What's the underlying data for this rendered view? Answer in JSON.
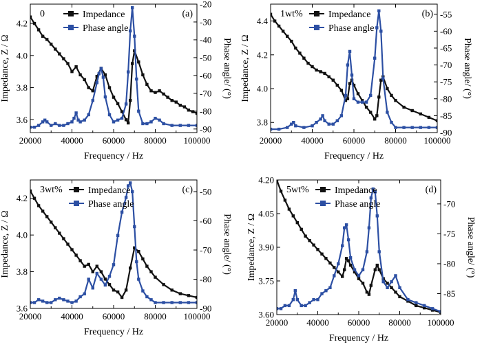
{
  "colors": {
    "impedance": "#111111",
    "phase": "#2c4fa3",
    "axis": "#000000"
  },
  "chart_data": [
    {
      "type": "line",
      "panel_label": "(a)",
      "content_label": "0",
      "xlabel": "Frequency / Hz",
      "ylabel": "Impedance, Z / Ω",
      "y2label": "Phase angle/ (°)",
      "xlim": [
        20000,
        100000
      ],
      "ylim": [
        3.52,
        4.32
      ],
      "y2lim": [
        -92,
        -20
      ],
      "xticks": [
        20000,
        40000,
        60000,
        80000,
        100000
      ],
      "yticks": [
        3.6,
        3.8,
        4.0,
        4.2
      ],
      "y2ticks": [
        -90,
        -80,
        -70,
        -60,
        -50,
        -40,
        -30,
        -20
      ],
      "legend": [
        "Impedance",
        "Phase angle"
      ],
      "legend_position": "top-left",
      "grid": false,
      "series": [
        {
          "name": "Impedance",
          "axis": "left",
          "x": [
            20000,
            22000,
            24000,
            26000,
            28000,
            30000,
            32000,
            34000,
            36000,
            38000,
            40000,
            42000,
            44000,
            46000,
            48000,
            50000,
            52000,
            54000,
            56000,
            58000,
            60000,
            62000,
            64000,
            66000,
            67000,
            68000,
            69000,
            70000,
            72000,
            74000,
            76000,
            78000,
            80000,
            82000,
            84000,
            86000,
            88000,
            90000,
            92000,
            94000,
            96000,
            98000,
            100000
          ],
          "values": [
            4.24,
            4.2,
            4.16,
            4.12,
            4.1,
            4.07,
            4.04,
            4.01,
            3.98,
            3.95,
            3.9,
            3.93,
            3.88,
            3.85,
            3.8,
            3.78,
            3.87,
            3.92,
            3.88,
            3.8,
            3.74,
            3.7,
            3.65,
            3.6,
            3.58,
            3.72,
            3.95,
            4.03,
            3.96,
            3.88,
            3.82,
            3.78,
            3.77,
            3.78,
            3.76,
            3.74,
            3.72,
            3.71,
            3.69,
            3.68,
            3.66,
            3.65,
            3.64
          ]
        },
        {
          "name": "Phase angle",
          "axis": "right",
          "x": [
            20000,
            22000,
            24000,
            26000,
            27000,
            28000,
            30000,
            32000,
            34000,
            36000,
            38000,
            40000,
            41000,
            42000,
            43000,
            44000,
            46000,
            48000,
            50000,
            52000,
            53000,
            54000,
            55000,
            56000,
            58000,
            60000,
            62000,
            64000,
            66000,
            67000,
            68000,
            69000,
            70000,
            71000,
            72000,
            74000,
            76000,
            78000,
            80000,
            82000,
            84000,
            88000,
            92000,
            96000,
            100000
          ],
          "values": [
            -89,
            -89,
            -88,
            -86,
            -85,
            -86,
            -88,
            -87,
            -88,
            -88,
            -87,
            -86,
            -84,
            -81,
            -85,
            -86,
            -85,
            -82,
            -74,
            -64,
            -59,
            -56,
            -61,
            -72,
            -82,
            -86,
            -85,
            -84,
            -76,
            -58,
            -35,
            -22,
            -38,
            -62,
            -80,
            -87,
            -87,
            -86,
            -84,
            -85,
            -87,
            -88,
            -88,
            -88,
            -88
          ]
        }
      ]
    },
    {
      "type": "line",
      "panel_label": "(b)",
      "content_label": "1wt%",
      "xlabel": "Frequency / Hz",
      "ylabel": "Impedance, Z / Ω",
      "y2label": "Phase angle/ (°)",
      "xlim": [
        20000,
        100000
      ],
      "ylim": [
        3.74,
        4.5
      ],
      "y2lim": [
        -90,
        -52
      ],
      "xticks": [
        20000,
        40000,
        60000,
        80000,
        100000
      ],
      "yticks": [
        3.8,
        4.0,
        4.2,
        4.4
      ],
      "y2ticks": [
        -90,
        -85,
        -80,
        -75,
        -70,
        -65,
        -60,
        -55
      ],
      "legend": [
        "Impedance",
        "Phase angle"
      ],
      "legend_position": "top-left",
      "grid": false,
      "series": [
        {
          "name": "Impedance",
          "axis": "left",
          "x": [
            20000,
            22000,
            24000,
            26000,
            28000,
            30000,
            32000,
            34000,
            36000,
            38000,
            40000,
            42000,
            44000,
            46000,
            48000,
            50000,
            52000,
            54000,
            56000,
            57000,
            58000,
            59000,
            60000,
            62000,
            64000,
            66000,
            68000,
            70000,
            71000,
            72000,
            73000,
            74000,
            76000,
            78000,
            80000,
            84000,
            88000,
            92000,
            96000,
            100000
          ],
          "values": [
            4.44,
            4.4,
            4.37,
            4.34,
            4.31,
            4.28,
            4.24,
            4.21,
            4.18,
            4.15,
            4.13,
            4.11,
            4.1,
            4.09,
            4.07,
            4.05,
            4.02,
            3.99,
            3.93,
            3.94,
            4.03,
            4.05,
            4.02,
            3.97,
            3.93,
            3.89,
            3.86,
            3.82,
            3.84,
            3.95,
            4.05,
            4.07,
            4.0,
            3.96,
            3.93,
            3.89,
            3.87,
            3.85,
            3.83,
            3.81
          ]
        },
        {
          "name": "Phase angle",
          "axis": "right",
          "x": [
            20000,
            24000,
            28000,
            30000,
            31000,
            32000,
            36000,
            40000,
            42000,
            44000,
            45000,
            46000,
            48000,
            50000,
            52000,
            54000,
            56000,
            57000,
            58000,
            59000,
            60000,
            62000,
            64000,
            66000,
            68000,
            70000,
            71000,
            72000,
            73000,
            74000,
            76000,
            78000,
            80000,
            84000,
            88000,
            92000,
            96000,
            100000
          ],
          "values": [
            -89,
            -89,
            -88.5,
            -87.5,
            -87,
            -88,
            -88.5,
            -88,
            -87,
            -86,
            -85,
            -86.5,
            -87.5,
            -87.5,
            -86.5,
            -85,
            -79,
            -70,
            -66,
            -73,
            -80,
            -81,
            -81,
            -81,
            -79,
            -68,
            -59,
            -54,
            -60,
            -74,
            -84,
            -87,
            -88.5,
            -88.5,
            -88.5,
            -88.5,
            -88.5,
            -88.5
          ]
        }
      ]
    },
    {
      "type": "line",
      "panel_label": "(c)",
      "content_label": "3wt%",
      "xlabel": "Frequency / Hz",
      "ylabel": "Impedance, Z / Ω",
      "y2label": "Phase angle/ (°)",
      "xlim": [
        20000,
        100000
      ],
      "ylim": [
        3.6,
        4.3
      ],
      "y2lim": [
        -90,
        -46
      ],
      "xticks": [
        20000,
        40000,
        60000,
        80000,
        100000
      ],
      "yticks": [
        3.6,
        3.8,
        4.0,
        4.2
      ],
      "y2ticks": [
        -90,
        -80,
        -70,
        -60,
        -50
      ],
      "legend": [
        "Impedance",
        "Phase angle"
      ],
      "legend_position": "top-left",
      "grid": false,
      "series": [
        {
          "name": "Impedance",
          "axis": "left",
          "x": [
            20000,
            22000,
            24000,
            26000,
            28000,
            30000,
            32000,
            34000,
            36000,
            38000,
            40000,
            42000,
            44000,
            46000,
            48000,
            50000,
            52000,
            54000,
            56000,
            58000,
            60000,
            62000,
            64000,
            66000,
            68000,
            70000,
            72000,
            74000,
            76000,
            78000,
            80000,
            84000,
            88000,
            92000,
            96000,
            100000
          ],
          "values": [
            4.24,
            4.2,
            4.16,
            4.13,
            4.1,
            4.07,
            4.04,
            4.01,
            3.98,
            3.95,
            3.92,
            3.89,
            3.86,
            3.83,
            3.84,
            3.8,
            3.83,
            3.8,
            3.76,
            3.73,
            3.7,
            3.69,
            3.66,
            3.7,
            3.82,
            3.93,
            3.91,
            3.87,
            3.83,
            3.8,
            3.77,
            3.73,
            3.7,
            3.68,
            3.67,
            3.66
          ]
        },
        {
          "name": "Phase angle",
          "axis": "right",
          "x": [
            20000,
            22000,
            24000,
            26000,
            28000,
            30000,
            32000,
            34000,
            36000,
            38000,
            40000,
            42000,
            44000,
            46000,
            48000,
            50000,
            52000,
            54000,
            56000,
            58000,
            60000,
            62000,
            64000,
            66000,
            67000,
            68000,
            69000,
            70000,
            71000,
            72000,
            74000,
            76000,
            78000,
            80000,
            84000,
            88000,
            92000,
            96000,
            100000
          ],
          "values": [
            -88,
            -88,
            -87,
            -87.5,
            -88,
            -88,
            -87,
            -86.5,
            -87,
            -87.5,
            -88,
            -87.5,
            -86,
            -85,
            -80,
            -83,
            -78,
            -80,
            -82,
            -79,
            -75,
            -65,
            -57,
            -52,
            -48,
            -47,
            -50,
            -62,
            -74,
            -80,
            -84,
            -86,
            -87,
            -88,
            -88,
            -88,
            -88,
            -88,
            -88
          ]
        }
      ]
    },
    {
      "type": "line",
      "panel_label": "(d)",
      "content_label": "5wt%",
      "xlabel": "Frequency / Hz",
      "ylabel": "Impedance, Z / Ω",
      "y2label": "Phase angle/ (°)",
      "xlim": [
        20000,
        100000
      ],
      "ylim": [
        3.6,
        4.2
      ],
      "y2lim": [
        -88.5,
        -66
      ],
      "xticks": [
        20000,
        40000,
        60000,
        80000,
        100000
      ],
      "yticks": [
        3.6,
        3.75,
        3.9,
        4.05,
        4.2
      ],
      "y2ticks": [
        -85,
        -80,
        -75,
        -70
      ],
      "legend": [
        "Impedance",
        "Phase angle"
      ],
      "legend_position": "top-left",
      "grid": false,
      "series": [
        {
          "name": "Impedance",
          "axis": "left",
          "x": [
            20000,
            22000,
            24000,
            26000,
            28000,
            30000,
            32000,
            34000,
            36000,
            38000,
            40000,
            42000,
            44000,
            46000,
            48000,
            50000,
            52000,
            53000,
            54000,
            55000,
            56000,
            58000,
            60000,
            62000,
            64000,
            65000,
            66000,
            68000,
            69000,
            70000,
            72000,
            74000,
            76000,
            78000,
            80000,
            84000,
            88000,
            92000,
            96000,
            100000
          ],
          "values": [
            4.2,
            4.15,
            4.11,
            4.07,
            4.04,
            4.01,
            3.98,
            3.95,
            3.93,
            3.91,
            3.89,
            3.87,
            3.85,
            3.83,
            3.81,
            3.79,
            3.77,
            3.8,
            3.85,
            3.84,
            3.82,
            3.79,
            3.76,
            3.74,
            3.7,
            3.69,
            3.73,
            3.8,
            3.82,
            3.8,
            3.76,
            3.74,
            3.72,
            3.7,
            3.68,
            3.66,
            3.64,
            3.63,
            3.62,
            3.61
          ]
        },
        {
          "name": "Phase angle",
          "axis": "right",
          "x": [
            20000,
            22000,
            24000,
            26000,
            28000,
            29000,
            30000,
            32000,
            34000,
            36000,
            38000,
            40000,
            42000,
            44000,
            46000,
            48000,
            50000,
            52000,
            53000,
            54000,
            55000,
            56000,
            58000,
            60000,
            62000,
            64000,
            65000,
            66000,
            67000,
            68000,
            69000,
            70000,
            72000,
            74000,
            76000,
            78000,
            80000,
            84000,
            88000,
            92000,
            96000,
            100000
          ],
          "values": [
            -87.5,
            -87.5,
            -87,
            -87,
            -86,
            -84.5,
            -86,
            -87,
            -87,
            -86.5,
            -86,
            -86,
            -85,
            -84.5,
            -84,
            -82,
            -80,
            -77,
            -74,
            -73.5,
            -76,
            -79,
            -81,
            -82,
            -81,
            -78,
            -74,
            -69,
            -67.5,
            -68,
            -72,
            -78,
            -83,
            -84,
            -83,
            -82,
            -84,
            -86,
            -86.5,
            -87,
            -87.5,
            -88
          ]
        }
      ]
    }
  ]
}
